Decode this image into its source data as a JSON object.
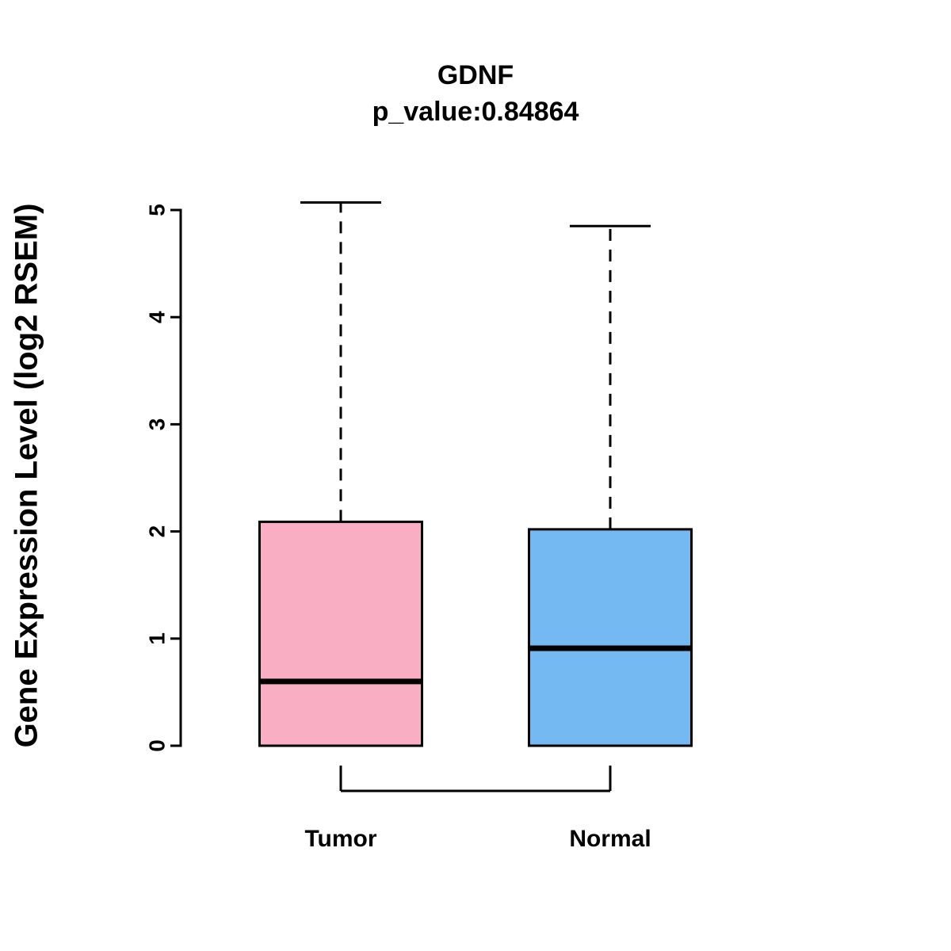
{
  "chart_data": {
    "type": "boxplot",
    "title": "GDNF",
    "subtitle": "p_value:0.84864",
    "ylabel": "Gene Expression Level (log2 RSEM)",
    "xlabel": "",
    "categories": [
      "Tumor",
      "Normal"
    ],
    "ylim": [
      0,
      5.1
    ],
    "yticks": [
      0,
      1,
      2,
      3,
      4,
      5
    ],
    "grid": false,
    "legend": "none",
    "comparison_bracket": true,
    "colors": {
      "tumor_fill": "#FAAEC3",
      "normal_fill": "#74B9F2",
      "stroke": "#000000"
    },
    "series": [
      {
        "name": "Tumor",
        "color": "#FAAEC3",
        "min": 0,
        "q1": 0,
        "median": 0.6,
        "q3": 2.09,
        "max": 5.07
      },
      {
        "name": "Normal",
        "color": "#74B9F2",
        "min": 0,
        "q1": 0,
        "median": 0.91,
        "q3": 2.02,
        "max": 4.85
      }
    ]
  }
}
